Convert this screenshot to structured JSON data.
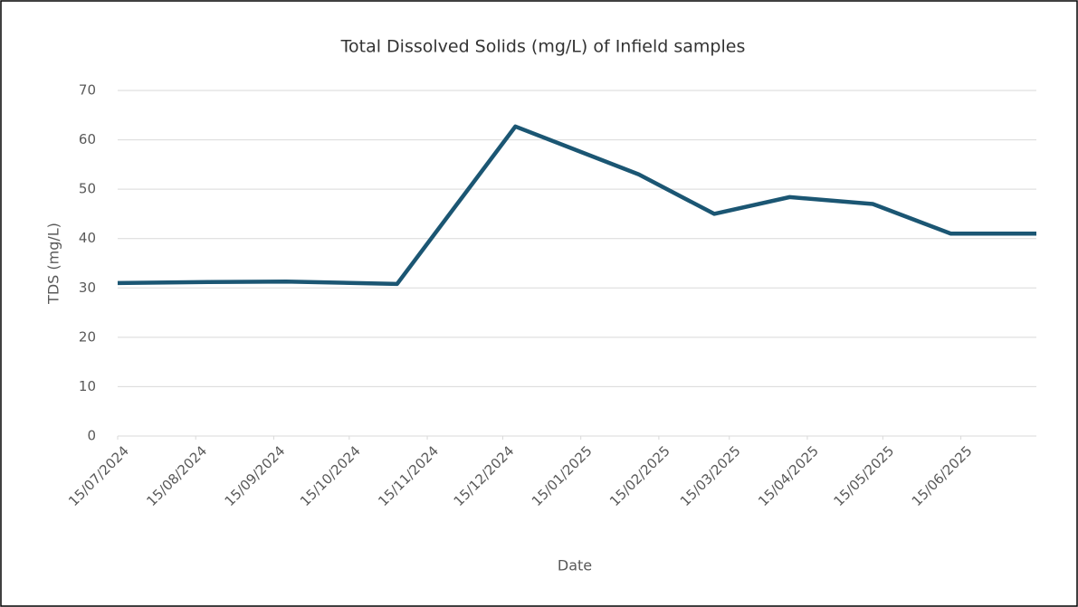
{
  "chart_data": {
    "type": "line",
    "title": "Total Dissolved Solids (mg/L) of Infield samples",
    "x_label": "Date",
    "y_label": "TDS (mg/L)",
    "x": [
      "2024-07-15",
      "2024-08-20",
      "2024-09-20",
      "2024-11-03",
      "2024-12-20",
      "2025-02-07",
      "2025-03-09",
      "2025-04-08",
      "2025-05-11",
      "2025-06-11",
      "2025-07-15"
    ],
    "series": [
      {
        "name": "TDS",
        "color": "#1b5673",
        "values": [
          31,
          31.2,
          31.3,
          30.8,
          62.7,
          53,
          45,
          48.4,
          47,
          41,
          41
        ]
      }
    ],
    "xlim": [
      "2024-07-15",
      "2025-07-15"
    ],
    "xticks": [
      {
        "value": "2024-07-15",
        "label": "15/07/2024"
      },
      {
        "value": "2024-08-15",
        "label": "15/08/2024"
      },
      {
        "value": "2024-09-15",
        "label": "15/09/2024"
      },
      {
        "value": "2024-10-15",
        "label": "15/10/2024"
      },
      {
        "value": "2024-11-15",
        "label": "15/11/2024"
      },
      {
        "value": "2024-12-15",
        "label": "15/12/2024"
      },
      {
        "value": "2025-01-15",
        "label": "15/01/2025"
      },
      {
        "value": "2025-02-15",
        "label": "15/02/2025"
      },
      {
        "value": "2025-03-15",
        "label": "15/03/2025"
      },
      {
        "value": "2025-04-15",
        "label": "15/04/2025"
      },
      {
        "value": "2025-05-15",
        "label": "15/05/2025"
      },
      {
        "value": "2025-06-15",
        "label": "15/06/2025"
      }
    ],
    "ylim": [
      0,
      70
    ],
    "yticks": [
      0,
      10,
      20,
      30,
      40,
      50,
      60,
      70
    ],
    "grid": true
  }
}
